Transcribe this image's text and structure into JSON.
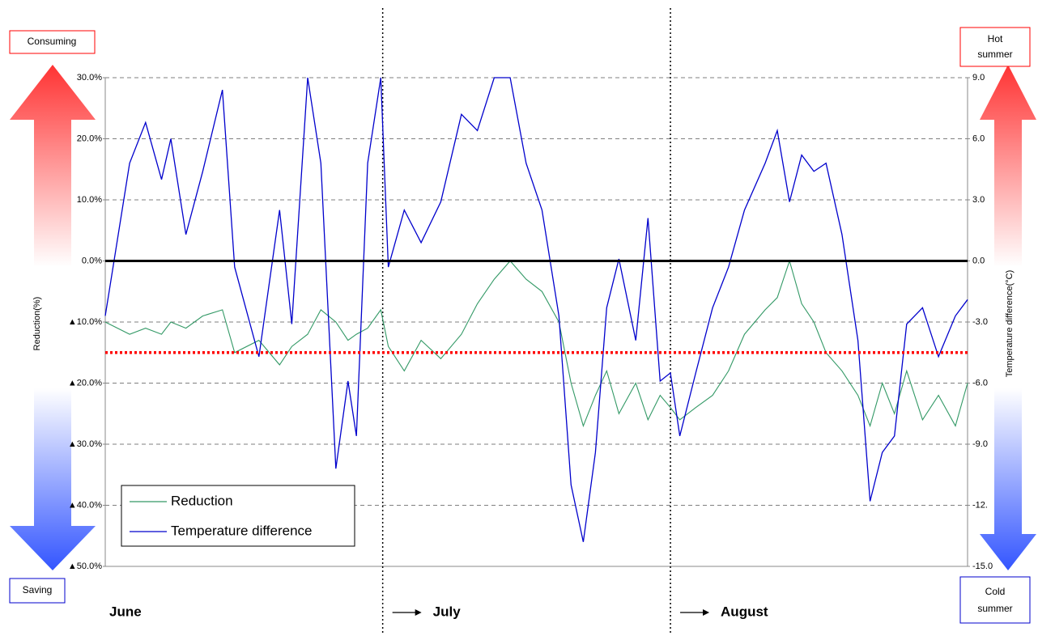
{
  "chart_data": {
    "type": "line",
    "x": [
      0,
      2.6,
      4.3,
      6,
      7,
      8.6,
      10.4,
      12.5,
      13.8,
      16.4,
      18.6,
      19.9,
      21.6,
      23,
      24.6,
      25.9,
      26.8,
      28,
      29.4,
      30.2,
      31.9,
      33.7,
      35.8,
      38,
      39.7,
      41.5,
      43.2,
      44.9,
      46.6,
      48.4,
      49.7,
      51,
      52.3,
      53.5,
      54.8,
      56.6,
      57.9,
      59.2,
      60.3,
      61.3,
      63,
      64.8,
      66.5,
      68.2,
      70.4,
      71.7,
      73,
      74.3,
      75.6,
      76.9,
      78.6,
      80.3,
      81.6,
      82.9,
      84.2,
      85.5,
      87.2,
      88.9,
      90.7,
      92
    ],
    "xlim": [
      0,
      92
    ],
    "series": [
      {
        "name": "Reduction",
        "color": "#339966",
        "axis": "y",
        "values": [
          -10,
          -12,
          -11,
          -12,
          -10,
          -11,
          -9,
          -8,
          -15,
          -13,
          -17,
          -14,
          -12,
          -8,
          -10,
          -13,
          -12,
          -11,
          -8,
          -14,
          -18,
          -13,
          -16,
          -12,
          -7,
          -3,
          0,
          -3,
          -5,
          -10,
          -20,
          -27,
          -22,
          -18,
          -25,
          -20,
          -26,
          -22,
          -24,
          -26,
          -24,
          -22,
          -18,
          -12,
          -8,
          -6,
          0,
          -7,
          -10,
          -15,
          -18,
          -22,
          -27,
          -20,
          -25,
          -18,
          -26,
          -22,
          -27,
          -20
        ]
      },
      {
        "name": "Temperature difference",
        "color": "#0000cc",
        "axis": "y2",
        "values": [
          -2.7,
          4.8,
          6.8,
          4.0,
          6.0,
          1.3,
          4.4,
          8.4,
          -0.3,
          -4.7,
          2.5,
          -3.1,
          9.0,
          4.8,
          -10.2,
          -5.9,
          -8.6,
          4.8,
          9.0,
          -0.3,
          2.5,
          0.9,
          2.9,
          7.2,
          6.4,
          9.0,
          9.0,
          4.8,
          2.5,
          -2.7,
          -11.0,
          -13.8,
          -9.4,
          -2.3,
          0.1,
          -3.9,
          2.1,
          -5.9,
          -5.5,
          -8.6,
          -5.5,
          -2.3,
          -0.3,
          2.5,
          4.8,
          6.4,
          2.9,
          5.2,
          4.4,
          4.8,
          1.3,
          -3.9,
          -11.8,
          -9.4,
          -8.6,
          -3.1,
          -2.3,
          -4.7,
          -2.7,
          -1.9
        ]
      }
    ],
    "ylim": [
      -50,
      30
    ],
    "yticks": [
      {
        "value": 30,
        "label": "30.0%"
      },
      {
        "value": 20,
        "label": "20.0%"
      },
      {
        "value": 10,
        "label": "10.0%"
      },
      {
        "value": 0,
        "label": "0.0%"
      },
      {
        "value": -10,
        "label": "▲10.0%"
      },
      {
        "value": -20,
        "label": "▲20.0%"
      },
      {
        "value": -30,
        "label": "▲30.0%"
      },
      {
        "value": -40,
        "label": "▲40.0%"
      },
      {
        "value": -50,
        "label": "▲50.0%"
      }
    ],
    "y2lim": [
      -15,
      9
    ],
    "y2ticks": [
      {
        "value": 9,
        "label": "9.0"
      },
      {
        "value": 6,
        "label": "6.0"
      },
      {
        "value": 3,
        "label": "3.0"
      },
      {
        "value": 0,
        "label": "0.0"
      },
      {
        "value": -3,
        "label": "-3.0"
      },
      {
        "value": -6,
        "label": "-6.0"
      },
      {
        "value": -9,
        "label": "-9.0"
      },
      {
        "value": -12,
        "label": "-12."
      },
      {
        "value": -15,
        "label": "-15.0"
      }
    ],
    "ylabel": "Reduction(%)",
    "y2label": "Temperature difference(°C)",
    "grid": true,
    "legend": "lower-left",
    "reference_line": {
      "value": -15,
      "color": "#ff0000"
    },
    "month_boundaries": [
      29.6,
      60.3
    ],
    "months": [
      "June",
      "July",
      "August"
    ],
    "annotations": {
      "consuming": "Consuming",
      "saving": "Saving",
      "hot": [
        "Hot",
        "summer"
      ],
      "cold": [
        "Cold",
        "summer"
      ]
    }
  }
}
